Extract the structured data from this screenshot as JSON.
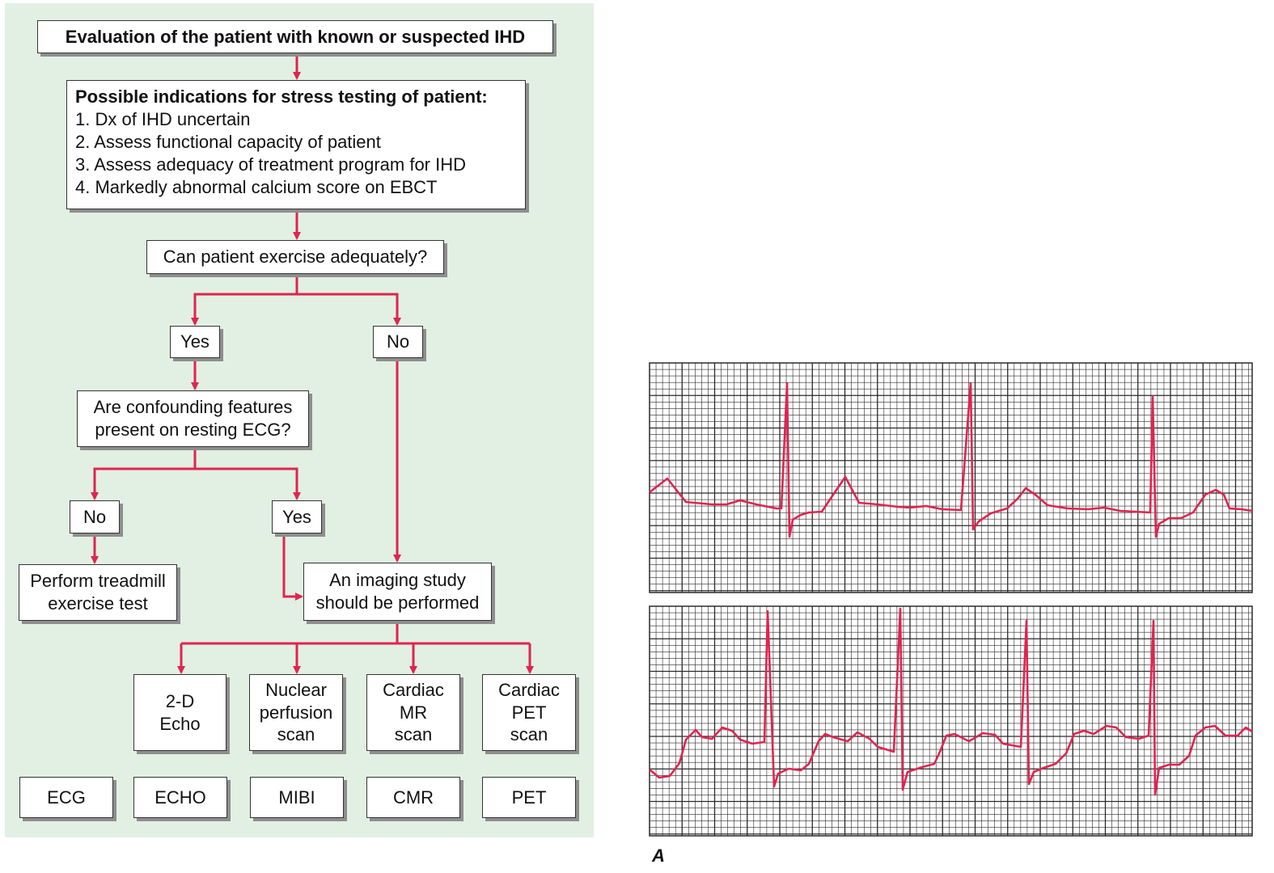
{
  "colors": {
    "panel_bg": "#e1f0e3",
    "arrow": "#e0244f",
    "ecg_trace": "#e0244f",
    "grid": "#2a2a2a"
  },
  "flowchart": {
    "title": "Evaluation of the patient with known or suspected IHD",
    "indications": {
      "heading": "Possible indications for stress testing of patient:",
      "items": [
        "1. Dx of IHD uncertain",
        "2. Assess functional capacity of patient",
        "3. Assess adequacy of treatment program for IHD",
        "4. Markedly abnormal calcium score on EBCT"
      ]
    },
    "question_exercise": "Can patient exercise adequately?",
    "yes_1": "Yes",
    "no_1": "No",
    "question_ecg": {
      "line1": "Are confounding features",
      "line2": "present on resting ECG?"
    },
    "no_2": "No",
    "yes_2": "Yes",
    "treadmill": {
      "line1": "Perform treadmill",
      "line2": "exercise test"
    },
    "imaging": {
      "line1": "An imaging study",
      "line2": "should be performed"
    },
    "modalities": [
      {
        "lines": [
          "2-D",
          "Echo"
        ]
      },
      {
        "lines": [
          "Nuclear",
          "perfusion",
          "scan"
        ]
      },
      {
        "lines": [
          "Cardiac",
          "MR",
          "scan"
        ]
      },
      {
        "lines": [
          "Cardiac",
          "PET",
          "scan"
        ]
      }
    ],
    "abbreviations": [
      "ECG",
      "ECHO",
      "MIBI",
      "CMR",
      "PET"
    ]
  },
  "ecg": {
    "panel_label": "A"
  }
}
